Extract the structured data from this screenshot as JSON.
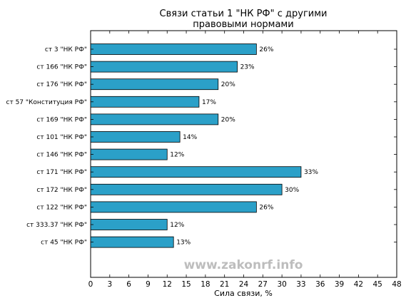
{
  "chart_data": {
    "type": "bar",
    "orientation": "horizontal",
    "title": "Связи статьи 1 \"НК РФ\" с другими",
    "subtitle": "правовыми нормами",
    "xlabel": "Сила связи, %",
    "ylabel": "",
    "xlim": [
      0,
      48
    ],
    "xticks": [
      0,
      3,
      6,
      9,
      12,
      15,
      18,
      21,
      24,
      27,
      30,
      33,
      36,
      39,
      42,
      45,
      48
    ],
    "categories": [
      "ст 3 \"НК РФ\"",
      "ст 166 \"НК РФ\"",
      "ст 176 \"НК РФ\"",
      "ст 57 \"Конституция РФ\"",
      "ст 169 \"НК РФ\"",
      "ст 101 \"НК РФ\"",
      "ст 146 \"НК РФ\"",
      "ст 171 \"НК РФ\"",
      "ст 172 \"НК РФ\"",
      "ст 122 \"НК РФ\"",
      "ст 333.37 \"НК РФ\"",
      "ст 45 \"НК РФ\""
    ],
    "values": [
      26,
      23,
      20,
      17,
      20,
      14,
      12,
      33,
      30,
      26,
      12,
      13
    ],
    "value_labels": [
      "26%",
      "23%",
      "20%",
      "17%",
      "20%",
      "14%",
      "12%",
      "33%",
      "30%",
      "26%",
      "12%",
      "13%"
    ],
    "bar_color": "#2ba0c8",
    "grid": false,
    "legend": "none"
  },
  "watermark": "www.zakonrf.info"
}
